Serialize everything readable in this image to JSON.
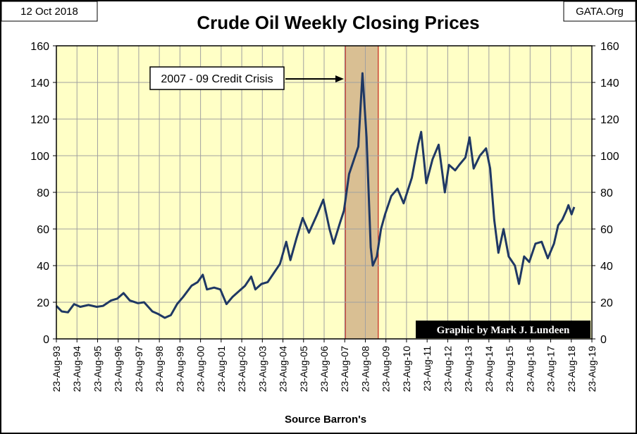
{
  "chart_data": {
    "type": "line",
    "title": "Crude Oil Weekly Closing Prices",
    "date": "12 Oct 2018",
    "source_site": "GATA.Org",
    "credit": "Graphic by Mark J. Lundeen",
    "x_label": "Source Barron's",
    "annotation": "2007 - 09 Credit Crisis",
    "shaded_region": [
      2007.67,
      2009.27
    ],
    "xlim": [
      1993.64,
      2019.64
    ],
    "xticks": [
      {
        "value": 1993.64,
        "label": "23-Aug-93"
      },
      {
        "value": 1994.64,
        "label": "23-Aug-94"
      },
      {
        "value": 1995.64,
        "label": "23-Aug-95"
      },
      {
        "value": 1996.64,
        "label": "23-Aug-96"
      },
      {
        "value": 1997.64,
        "label": "23-Aug-97"
      },
      {
        "value": 1998.64,
        "label": "23-Aug-98"
      },
      {
        "value": 1999.64,
        "label": "23-Aug-99"
      },
      {
        "value": 2000.64,
        "label": "23-Aug-00"
      },
      {
        "value": 2001.64,
        "label": "23-Aug-01"
      },
      {
        "value": 2002.64,
        "label": "23-Aug-02"
      },
      {
        "value": 2003.64,
        "label": "23-Aug-03"
      },
      {
        "value": 2004.64,
        "label": "23-Aug-04"
      },
      {
        "value": 2005.64,
        "label": "23-Aug-05"
      },
      {
        "value": 2006.64,
        "label": "23-Aug-06"
      },
      {
        "value": 2007.64,
        "label": "23-Aug-07"
      },
      {
        "value": 2008.64,
        "label": "23-Aug-08"
      },
      {
        "value": 2009.64,
        "label": "23-Aug-09"
      },
      {
        "value": 2010.64,
        "label": "23-Aug-10"
      },
      {
        "value": 2011.64,
        "label": "23-Aug-11"
      },
      {
        "value": 2012.64,
        "label": "23-Aug-12"
      },
      {
        "value": 2013.64,
        "label": "23-Aug-13"
      },
      {
        "value": 2014.64,
        "label": "23-Aug-14"
      },
      {
        "value": 2015.64,
        "label": "23-Aug-15"
      },
      {
        "value": 2016.64,
        "label": "23-Aug-16"
      },
      {
        "value": 2017.64,
        "label": "23-Aug-17"
      },
      {
        "value": 2018.64,
        "label": "23-Aug-18"
      },
      {
        "value": 2019.64,
        "label": "23-Aug-19"
      }
    ],
    "ylim": [
      0,
      160
    ],
    "yticks": [
      0,
      20,
      40,
      60,
      80,
      100,
      120,
      140,
      160
    ],
    "y2lim": [
      0,
      160
    ],
    "y2ticks": [
      0,
      20,
      40,
      60,
      80,
      100,
      120,
      140,
      160
    ],
    "grid": true,
    "series": [
      {
        "name": "Crude Oil",
        "color": "#1f3864",
        "x": [
          1993.64,
          1993.9,
          1994.2,
          1994.5,
          1994.8,
          1995.2,
          1995.6,
          1995.9,
          1996.3,
          1996.6,
          1996.9,
          1997.2,
          1997.6,
          1997.9,
          1998.3,
          1998.6,
          1998.9,
          1999.2,
          1999.5,
          1999.8,
          2000.2,
          2000.5,
          2000.75,
          2000.95,
          2001.3,
          2001.6,
          2001.9,
          2002.2,
          2002.5,
          2002.8,
          2003.1,
          2003.3,
          2003.6,
          2003.9,
          2004.2,
          2004.5,
          2004.8,
          2005.0,
          2005.3,
          2005.6,
          2005.9,
          2006.3,
          2006.6,
          2006.9,
          2007.1,
          2007.4,
          2007.6,
          2007.85,
          2008.0,
          2008.3,
          2008.5,
          2008.7,
          2008.9,
          2009.0,
          2009.2,
          2009.4,
          2009.6,
          2009.9,
          2010.2,
          2010.5,
          2010.9,
          2011.2,
          2011.35,
          2011.6,
          2011.9,
          2012.2,
          2012.5,
          2012.7,
          2013.0,
          2013.2,
          2013.5,
          2013.7,
          2013.9,
          2014.2,
          2014.5,
          2014.7,
          2014.9,
          2015.1,
          2015.35,
          2015.6,
          2015.9,
          2016.1,
          2016.35,
          2016.6,
          2016.9,
          2017.2,
          2017.5,
          2017.8,
          2018.0,
          2018.2,
          2018.4,
          2018.5,
          2018.65,
          2018.78
        ],
        "values": [
          18,
          15,
          14.5,
          19,
          17.5,
          18.5,
          17.5,
          18,
          21,
          22,
          25,
          21,
          19.5,
          20,
          15,
          13.5,
          11.5,
          13,
          19,
          23,
          29,
          31,
          35,
          27,
          28,
          27,
          19,
          23,
          26,
          29,
          34,
          27,
          30,
          31,
          36,
          41,
          53,
          43,
          55,
          66,
          58,
          68,
          76,
          60,
          52,
          63,
          70,
          90,
          95,
          105,
          145,
          110,
          50,
          40,
          45,
          60,
          68,
          78,
          82,
          74,
          88,
          106,
          113,
          85,
          98,
          106,
          80,
          95,
          92,
          95,
          99,
          110,
          93,
          100,
          104,
          93,
          65,
          47,
          60,
          45,
          40,
          30,
          45,
          42,
          52,
          53,
          44,
          52,
          62,
          65,
          70,
          73,
          68,
          72
        ]
      }
    ]
  }
}
